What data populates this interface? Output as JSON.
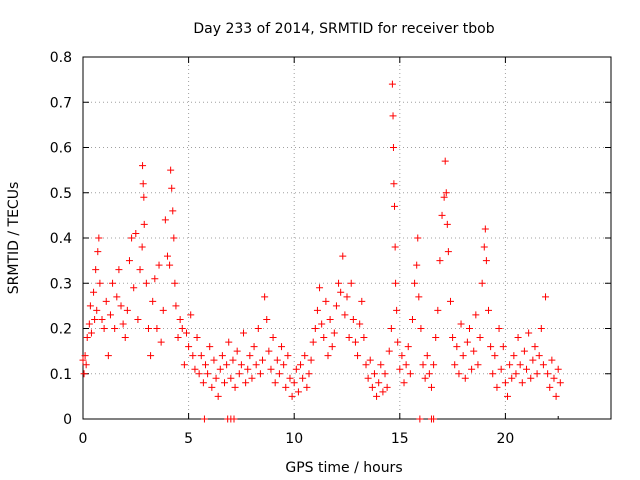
{
  "chart_data": {
    "type": "scatter",
    "title": "Day 233 of 2014, SRMTID for receiver tbob",
    "xlabel": "GPS time / hours",
    "ylabel": "SRMTID / TECUs",
    "xlim": [
      0,
      25
    ],
    "ylim": [
      0,
      0.8
    ],
    "x_ticks": [
      "0",
      "5",
      "10",
      "15",
      "20"
    ],
    "y_ticks": [
      "0",
      "0.1",
      "0.2",
      "0.3",
      "0.4",
      "0.5",
      "0.6",
      "0.7",
      "0.8"
    ],
    "grid": true,
    "marker": "plus",
    "series": [
      {
        "name": "SRMTID",
        "color": "#ff0000",
        "x_range_hours": [
          0,
          22.6
        ],
        "points": [
          [
            0.0,
            0.13
          ],
          [
            0.05,
            0.1
          ],
          [
            0.1,
            0.14
          ],
          [
            0.15,
            0.12
          ],
          [
            0.2,
            0.18
          ],
          [
            0.3,
            0.21
          ],
          [
            0.35,
            0.25
          ],
          [
            0.4,
            0.19
          ],
          [
            0.5,
            0.28
          ],
          [
            0.55,
            0.22
          ],
          [
            0.6,
            0.33
          ],
          [
            0.65,
            0.24
          ],
          [
            0.7,
            0.37
          ],
          [
            0.75,
            0.4
          ],
          [
            0.8,
            0.3
          ],
          [
            0.9,
            0.22
          ],
          [
            1.0,
            0.2
          ],
          [
            1.1,
            0.26
          ],
          [
            1.2,
            0.14
          ],
          [
            1.3,
            0.23
          ],
          [
            1.4,
            0.3
          ],
          [
            1.5,
            0.2
          ],
          [
            1.6,
            0.27
          ],
          [
            1.7,
            0.33
          ],
          [
            1.8,
            0.25
          ],
          [
            1.9,
            0.21
          ],
          [
            2.0,
            0.18
          ],
          [
            2.1,
            0.24
          ],
          [
            2.2,
            0.35
          ],
          [
            2.3,
            0.4
          ],
          [
            2.4,
            0.29
          ],
          [
            2.5,
            0.41
          ],
          [
            2.6,
            0.22
          ],
          [
            2.7,
            0.33
          ],
          [
            2.8,
            0.38
          ],
          [
            2.82,
            0.56
          ],
          [
            2.85,
            0.52
          ],
          [
            2.88,
            0.49
          ],
          [
            2.9,
            0.43
          ],
          [
            3.0,
            0.3
          ],
          [
            3.1,
            0.2
          ],
          [
            3.2,
            0.14
          ],
          [
            3.3,
            0.26
          ],
          [
            3.4,
            0.31
          ],
          [
            3.5,
            0.2
          ],
          [
            3.6,
            0.34
          ],
          [
            3.7,
            0.17
          ],
          [
            3.8,
            0.24
          ],
          [
            3.9,
            0.44
          ],
          [
            4.0,
            0.36
          ],
          [
            4.1,
            0.34
          ],
          [
            4.15,
            0.55
          ],
          [
            4.2,
            0.51
          ],
          [
            4.25,
            0.46
          ],
          [
            4.3,
            0.4
          ],
          [
            4.35,
            0.3
          ],
          [
            4.4,
            0.25
          ],
          [
            4.5,
            0.18
          ],
          [
            4.6,
            0.22
          ],
          [
            4.7,
            0.2
          ],
          [
            4.8,
            0.12
          ],
          [
            4.9,
            0.19
          ],
          [
            5.0,
            0.16
          ],
          [
            5.1,
            0.23
          ],
          [
            5.2,
            0.14
          ],
          [
            5.3,
            0.11
          ],
          [
            5.4,
            0.18
          ],
          [
            5.5,
            0.1
          ],
          [
            5.6,
            0.14
          ],
          [
            5.7,
            0.08
          ],
          [
            5.8,
            0.12
          ],
          [
            5.9,
            0.1
          ],
          [
            6.0,
            0.16
          ],
          [
            6.1,
            0.07
          ],
          [
            6.2,
            0.13
          ],
          [
            6.3,
            0.09
          ],
          [
            6.4,
            0.05
          ],
          [
            6.5,
            0.11
          ],
          [
            6.6,
            0.14
          ],
          [
            6.7,
            0.08
          ],
          [
            6.8,
            0.12
          ],
          [
            6.9,
            0.17
          ],
          [
            7.0,
            0.09
          ],
          [
            7.1,
            0.13
          ],
          [
            7.2,
            0.07
          ],
          [
            7.3,
            0.15
          ],
          [
            7.4,
            0.1
          ],
          [
            7.5,
            0.12
          ],
          [
            7.6,
            0.19
          ],
          [
            7.7,
            0.08
          ],
          [
            7.8,
            0.11
          ],
          [
            7.9,
            0.14
          ],
          [
            8.0,
            0.09
          ],
          [
            8.1,
            0.16
          ],
          [
            8.2,
            0.12
          ],
          [
            8.3,
            0.2
          ],
          [
            8.4,
            0.1
          ],
          [
            8.5,
            0.13
          ],
          [
            8.6,
            0.27
          ],
          [
            8.7,
            0.22
          ],
          [
            8.8,
            0.15
          ],
          [
            8.9,
            0.11
          ],
          [
            9.0,
            0.18
          ],
          [
            9.1,
            0.08
          ],
          [
            9.2,
            0.13
          ],
          [
            9.3,
            0.1
          ],
          [
            9.4,
            0.16
          ],
          [
            9.5,
            0.12
          ],
          [
            9.6,
            0.07
          ],
          [
            9.7,
            0.14
          ],
          [
            9.8,
            0.09
          ],
          [
            9.9,
            0.05
          ],
          [
            10.0,
            0.08
          ],
          [
            10.1,
            0.11
          ],
          [
            10.2,
            0.06
          ],
          [
            10.3,
            0.12
          ],
          [
            10.4,
            0.09
          ],
          [
            10.5,
            0.14
          ],
          [
            10.6,
            0.07
          ],
          [
            10.7,
            0.1
          ],
          [
            10.8,
            0.13
          ],
          [
            10.9,
            0.17
          ],
          [
            11.0,
            0.2
          ],
          [
            11.1,
            0.24
          ],
          [
            11.2,
            0.29
          ],
          [
            11.3,
            0.21
          ],
          [
            11.4,
            0.18
          ],
          [
            11.5,
            0.26
          ],
          [
            11.6,
            0.14
          ],
          [
            11.7,
            0.22
          ],
          [
            11.8,
            0.16
          ],
          [
            11.9,
            0.19
          ],
          [
            12.0,
            0.25
          ],
          [
            12.1,
            0.3
          ],
          [
            12.2,
            0.28
          ],
          [
            12.3,
            0.36
          ],
          [
            12.4,
            0.23
          ],
          [
            12.5,
            0.27
          ],
          [
            12.6,
            0.18
          ],
          [
            12.7,
            0.3
          ],
          [
            12.8,
            0.22
          ],
          [
            12.9,
            0.17
          ],
          [
            13.0,
            0.14
          ],
          [
            13.1,
            0.21
          ],
          [
            13.2,
            0.26
          ],
          [
            13.3,
            0.18
          ],
          [
            13.4,
            0.12
          ],
          [
            13.5,
            0.09
          ],
          [
            13.6,
            0.13
          ],
          [
            13.7,
            0.07
          ],
          [
            13.8,
            0.1
          ],
          [
            13.9,
            0.05
          ],
          [
            14.0,
            0.08
          ],
          [
            14.1,
            0.12
          ],
          [
            14.2,
            0.06
          ],
          [
            14.3,
            0.1
          ],
          [
            14.4,
            0.07
          ],
          [
            14.5,
            0.15
          ],
          [
            14.6,
            0.2
          ],
          [
            14.65,
            0.74
          ],
          [
            14.68,
            0.67
          ],
          [
            14.7,
            0.6
          ],
          [
            14.72,
            0.52
          ],
          [
            14.75,
            0.47
          ],
          [
            14.78,
            0.38
          ],
          [
            14.8,
            0.3
          ],
          [
            14.85,
            0.24
          ],
          [
            14.9,
            0.17
          ],
          [
            15.0,
            0.11
          ],
          [
            15.1,
            0.14
          ],
          [
            15.2,
            0.08
          ],
          [
            15.3,
            0.12
          ],
          [
            15.4,
            0.16
          ],
          [
            15.5,
            0.1
          ],
          [
            15.6,
            0.22
          ],
          [
            15.7,
            0.3
          ],
          [
            15.8,
            0.34
          ],
          [
            15.85,
            0.4
          ],
          [
            15.9,
            0.27
          ],
          [
            16.0,
            0.2
          ],
          [
            16.1,
            0.12
          ],
          [
            16.2,
            0.09
          ],
          [
            16.3,
            0.14
          ],
          [
            16.4,
            0.1
          ],
          [
            16.5,
            0.07
          ],
          [
            16.6,
            0.12
          ],
          [
            16.7,
            0.18
          ],
          [
            16.8,
            0.24
          ],
          [
            16.9,
            0.35
          ],
          [
            17.0,
            0.45
          ],
          [
            17.1,
            0.49
          ],
          [
            17.15,
            0.57
          ],
          [
            17.2,
            0.5
          ],
          [
            17.25,
            0.43
          ],
          [
            17.3,
            0.37
          ],
          [
            17.4,
            0.26
          ],
          [
            17.5,
            0.18
          ],
          [
            17.6,
            0.12
          ],
          [
            17.7,
            0.16
          ],
          [
            17.8,
            0.1
          ],
          [
            17.9,
            0.21
          ],
          [
            18.0,
            0.14
          ],
          [
            18.1,
            0.09
          ],
          [
            18.2,
            0.17
          ],
          [
            18.3,
            0.2
          ],
          [
            18.4,
            0.11
          ],
          [
            18.5,
            0.15
          ],
          [
            18.6,
            0.23
          ],
          [
            18.7,
            0.12
          ],
          [
            18.8,
            0.18
          ],
          [
            18.9,
            0.3
          ],
          [
            19.0,
            0.38
          ],
          [
            19.05,
            0.42
          ],
          [
            19.1,
            0.35
          ],
          [
            19.2,
            0.24
          ],
          [
            19.3,
            0.16
          ],
          [
            19.4,
            0.1
          ],
          [
            19.5,
            0.14
          ],
          [
            19.6,
            0.07
          ],
          [
            19.7,
            0.2
          ],
          [
            19.8,
            0.11
          ],
          [
            19.9,
            0.16
          ],
          [
            20.0,
            0.08
          ],
          [
            20.1,
            0.05
          ],
          [
            20.2,
            0.12
          ],
          [
            20.3,
            0.09
          ],
          [
            20.4,
            0.14
          ],
          [
            20.5,
            0.1
          ],
          [
            20.6,
            0.18
          ],
          [
            20.7,
            0.12
          ],
          [
            20.8,
            0.08
          ],
          [
            20.9,
            0.15
          ],
          [
            21.0,
            0.11
          ],
          [
            21.1,
            0.19
          ],
          [
            21.2,
            0.09
          ],
          [
            21.3,
            0.13
          ],
          [
            21.4,
            0.16
          ],
          [
            21.5,
            0.1
          ],
          [
            21.6,
            0.14
          ],
          [
            21.7,
            0.2
          ],
          [
            21.8,
            0.12
          ],
          [
            21.9,
            0.27
          ],
          [
            22.0,
            0.1
          ],
          [
            22.1,
            0.07
          ],
          [
            22.2,
            0.13
          ],
          [
            22.3,
            0.09
          ],
          [
            22.4,
            0.05
          ],
          [
            22.5,
            0.11
          ],
          [
            22.6,
            0.08
          ]
        ],
        "zero_points": [
          [
            5.75,
            0
          ],
          [
            6.85,
            0
          ],
          [
            7.0,
            0
          ],
          [
            7.15,
            0
          ],
          [
            15.95,
            0
          ],
          [
            16.5,
            0
          ],
          [
            16.6,
            0
          ]
        ]
      }
    ]
  }
}
